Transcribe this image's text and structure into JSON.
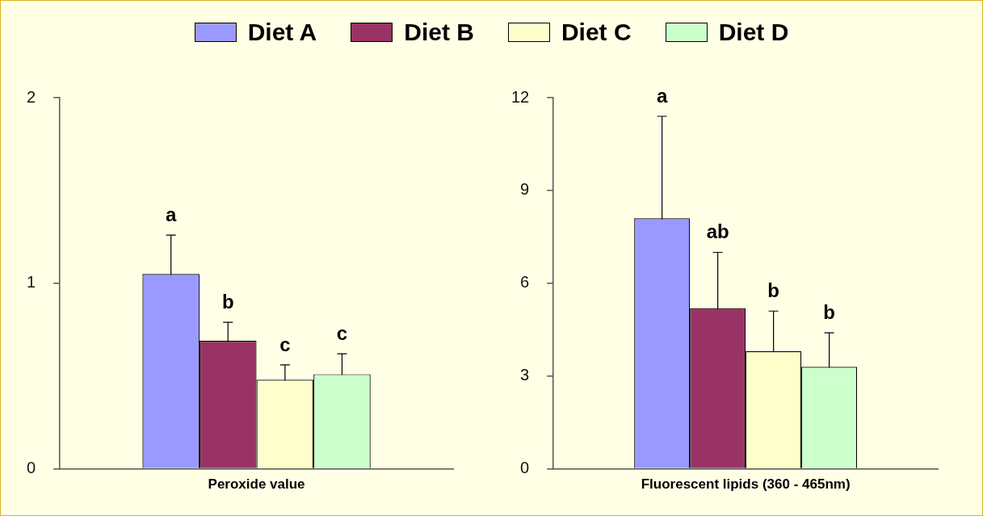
{
  "chart_data": [
    {
      "type": "bar",
      "categories": [
        "Peroxide value"
      ],
      "legend": "top",
      "ylim": [
        0,
        2
      ],
      "yticks": [
        0,
        1,
        2
      ],
      "grid": false,
      "annotations": [
        "a",
        "b",
        "c",
        "c"
      ],
      "series": [
        {
          "name": "Diet A",
          "color": "#9999ff",
          "values": [
            1.05
          ],
          "errors": [
            0.21
          ]
        },
        {
          "name": "Diet B",
          "color": "#993366",
          "values": [
            0.69
          ],
          "errors": [
            0.1
          ]
        },
        {
          "name": "Diet C",
          "color": "#ffffcc",
          "values": [
            0.48
          ],
          "errors": [
            0.08
          ]
        },
        {
          "name": "Diet D",
          "color": "#ccffcc",
          "values": [
            0.51
          ],
          "errors": [
            0.11
          ]
        }
      ]
    },
    {
      "type": "bar",
      "categories": [
        "Fluorescent lipids (360 - 465nm)"
      ],
      "ylim": [
        0,
        12
      ],
      "yticks": [
        0,
        3,
        6,
        9,
        12
      ],
      "grid": false,
      "annotations": [
        "a",
        "ab",
        "b",
        "b"
      ],
      "series": [
        {
          "color": "#9999ff",
          "values": [
            8.1
          ],
          "errors": [
            3.3
          ]
        },
        {
          "color": "#993366",
          "values": [
            5.2
          ],
          "errors": [
            1.8
          ]
        },
        {
          "color": "#ffffcc",
          "values": [
            3.8
          ],
          "errors": [
            1.3
          ]
        },
        {
          "color": "#ccffcc",
          "values": [
            3.3
          ],
          "errors": [
            1.1
          ]
        }
      ]
    }
  ]
}
